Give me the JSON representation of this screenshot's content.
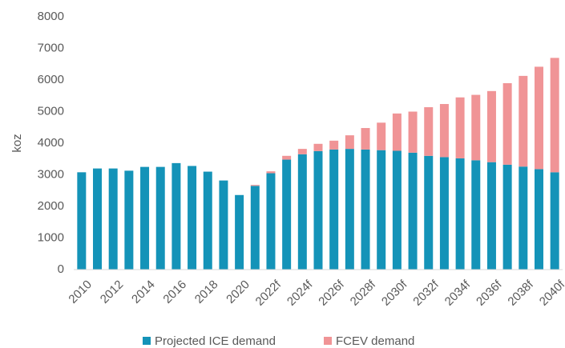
{
  "chart_data": {
    "type": "stacked_bar",
    "y_label": "koz",
    "categories": [
      "2010",
      null,
      "2012",
      null,
      "2014",
      null,
      "2016",
      null,
      "2018",
      null,
      "2020",
      null,
      "2022f",
      null,
      "2024f",
      null,
      "2026f",
      null,
      "2028f",
      null,
      "2030f",
      null,
      "2032f",
      null,
      "2034f",
      null,
      "2036f",
      null,
      "2038f",
      null,
      "2040f"
    ],
    "series": [
      {
        "name": "Projected ICE demand",
        "color": "#1493b8",
        "values": [
          3080,
          3200,
          3200,
          3130,
          3250,
          3250,
          3370,
          3280,
          3100,
          2820,
          2360,
          2650,
          3050,
          3480,
          3650,
          3750,
          3800,
          3820,
          3800,
          3780,
          3760,
          3700,
          3600,
          3560,
          3520,
          3460,
          3400,
          3320,
          3260,
          3180,
          3080
        ]
      },
      {
        "name": "FCEV demand",
        "color": "#f09496",
        "values": [
          0,
          0,
          0,
          0,
          0,
          0,
          0,
          0,
          0,
          0,
          0,
          30,
          60,
          120,
          170,
          230,
          280,
          430,
          680,
          870,
          1180,
          1300,
          1540,
          1680,
          1930,
          2070,
          2250,
          2580,
          2870,
          3240,
          3620
        ]
      }
    ],
    "ylim": [
      0,
      8000
    ],
    "yticks": [
      0,
      1000,
      2000,
      3000,
      4000,
      5000,
      6000,
      7000,
      8000
    ],
    "grid": false,
    "legend": "bottom"
  }
}
